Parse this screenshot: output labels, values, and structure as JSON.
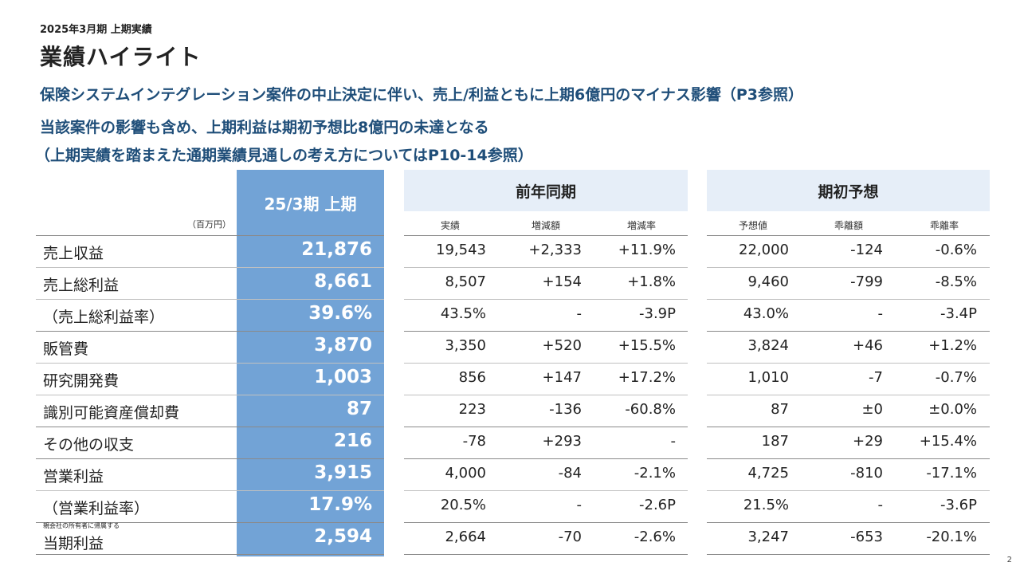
{
  "header": {
    "subtitle": "2025年3月期 上期実績",
    "title": "業績ハイライト"
  },
  "highlights": [
    "保険システムインテグレーション案件の中止決定に伴い、売上/利益ともに上期6億円のマイナス影響（P3参照）",
    "当該案件の影響も含め、上期利益は期初予想比8億円の未達となる",
    "（上期実績を踏まえた通期業績見通しの考え方についてはP10-14参照）"
  ],
  "table": {
    "unit": "（百万円）",
    "current_header": "25/3期 上期",
    "prev_header": "前年同期",
    "prev_subheaders": [
      "実績",
      "増減額",
      "増減率"
    ],
    "forecast_header": "期初予想",
    "forecast_subheaders": [
      "予想値",
      "乖離額",
      "乖離率"
    ],
    "rows": [
      {
        "label": "売上収益",
        "current": "21,876",
        "prev": [
          "19,543",
          "+2,333",
          "+11.9%"
        ],
        "forecast": [
          "22,000",
          "-124",
          "-0.6%"
        ]
      },
      {
        "label": "売上総利益",
        "current": "8,661",
        "prev": [
          "8,507",
          "+154",
          "+1.8%"
        ],
        "forecast": [
          "9,460",
          "-799",
          "-8.5%"
        ]
      },
      {
        "label": "（売上総利益率）",
        "current": "39.6%",
        "prev": [
          "43.5%",
          "-",
          "-3.9P"
        ],
        "forecast": [
          "43.0%",
          "-",
          "-3.4P"
        ]
      },
      {
        "label": "販管費",
        "current": "3,870",
        "prev": [
          "3,350",
          "+520",
          "+15.5%"
        ],
        "forecast": [
          "3,824",
          "+46",
          "+1.2%"
        ]
      },
      {
        "label": "研究開発費",
        "current": "1,003",
        "prev": [
          "856",
          "+147",
          "+17.2%"
        ],
        "forecast": [
          "1,010",
          "-7",
          "-0.7%"
        ]
      },
      {
        "label": "識別可能資産償却費",
        "current": "87",
        "prev": [
          "223",
          "-136",
          "-60.8%"
        ],
        "forecast": [
          "87",
          "±0",
          "±0.0%"
        ]
      },
      {
        "label": "その他の収支",
        "current": "216",
        "prev": [
          "-78",
          "+293",
          "-"
        ],
        "forecast": [
          "187",
          "+29",
          "+15.4%"
        ]
      },
      {
        "label": "営業利益",
        "current": "3,915",
        "prev": [
          "4,000",
          "-84",
          "-2.1%"
        ],
        "forecast": [
          "4,725",
          "-810",
          "-17.1%"
        ]
      },
      {
        "label": "（営業利益率）",
        "current": "17.9%",
        "prev": [
          "20.5%",
          "-",
          "-2.6P"
        ],
        "forecast": [
          "21.5%",
          "-",
          "-3.6P"
        ]
      },
      {
        "label": "当期利益",
        "note": "親会社の所有者に帰属する",
        "current": "2,594",
        "prev": [
          "2,664",
          "-70",
          "-2.6%"
        ],
        "forecast": [
          "3,247",
          "-653",
          "-20.1%"
        ]
      }
    ]
  },
  "page_number": "2",
  "colors": {
    "current_column": "#72a3d6",
    "header_fill": "#e6eef8",
    "highlight_text": "#1f4e79"
  }
}
